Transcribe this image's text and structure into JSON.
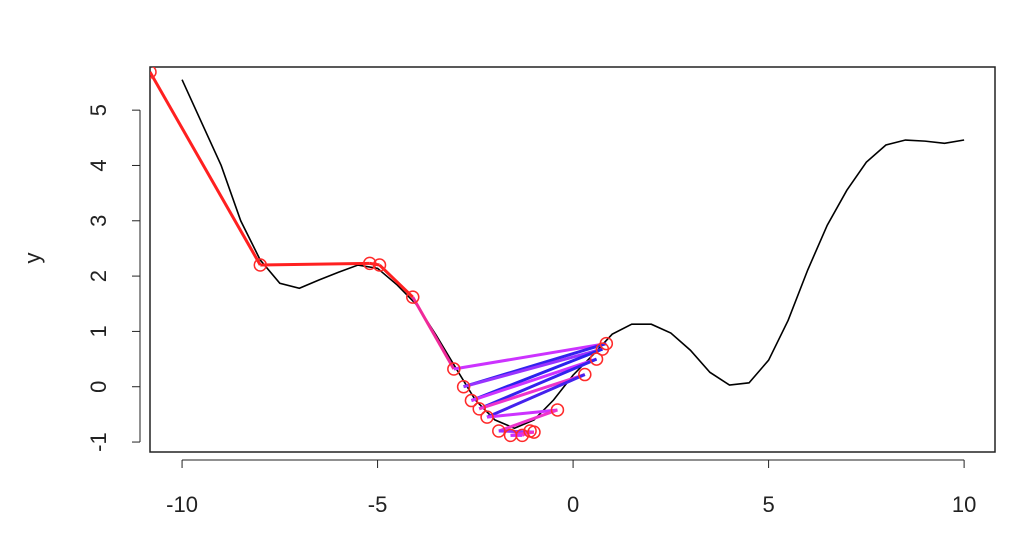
{
  "chart_data": {
    "type": "line",
    "ylabel": "y",
    "xlim": [
      -10.82,
      10.79
    ],
    "ylim": [
      -1.18,
      5.78
    ],
    "xticks": [
      -10,
      -5,
      0,
      5,
      10
    ],
    "yticks": [
      -1,
      0,
      1,
      2,
      3,
      4,
      5
    ],
    "series": [
      {
        "color": "#000000",
        "x": [
          -10,
          -9,
          -8.5,
          -8,
          -7.5,
          -7,
          -6.5,
          -6,
          -5.5,
          -5,
          -4.5,
          -4,
          -3.5,
          -3,
          -2.5,
          -2,
          -1.5,
          -1,
          -0.5,
          0,
          0.5,
          1,
          1.5,
          2,
          2.5,
          3,
          3.5,
          4,
          4.5,
          5,
          5.5,
          6,
          6.5,
          7,
          7.5,
          8,
          8.5,
          9,
          9.5,
          10
        ],
        "values": [
          5.55,
          4.0,
          3.0,
          2.29,
          1.87,
          1.78,
          1.93,
          2.07,
          2.2,
          2.14,
          1.84,
          1.48,
          0.93,
          0.34,
          -0.24,
          -0.6,
          -0.75,
          -0.6,
          -0.24,
          0.21,
          0.57,
          0.95,
          1.13,
          1.13,
          0.97,
          0.66,
          0.26,
          0.03,
          0.07,
          0.48,
          1.2,
          2.11,
          2.92,
          3.55,
          4.06,
          4.37,
          4.46,
          4.44,
          4.4,
          4.46
        ]
      },
      {
        "color": "#ff2a2a",
        "markers": true,
        "x": [
          -10.82,
          -8,
          -5.2,
          -4.95,
          -4.1,
          -3.05,
          0.85,
          -2.8,
          0.75,
          -2.6,
          0.6,
          -2.4,
          0.3,
          -2.2,
          -0.4,
          -1.9,
          -1.0,
          -1.6,
          -1.3,
          -1.1
        ],
        "values": [
          5.69,
          2.2,
          2.23,
          2.2,
          1.62,
          0.32,
          0.78,
          0.0,
          0.68,
          -0.25,
          0.5,
          -0.4,
          0.22,
          -0.55,
          -0.42,
          -0.8,
          -0.82,
          -0.88,
          -0.88,
          -0.8
        ],
        "segment_colors": [
          "#ff2020",
          "#ff2020",
          "#ff2020",
          "#ff2020",
          "#f02a9a",
          "#cc33ff",
          "#3322ee",
          "#9933ff",
          "#2a22ee",
          "#cc33ff",
          "#3322ee",
          "#ee33cc",
          "#4422ee",
          "#cc33ff",
          "#ee33cc",
          "#9933ff",
          "#ee33cc",
          "#cc33ff",
          "#ee33cc"
        ]
      }
    ]
  }
}
